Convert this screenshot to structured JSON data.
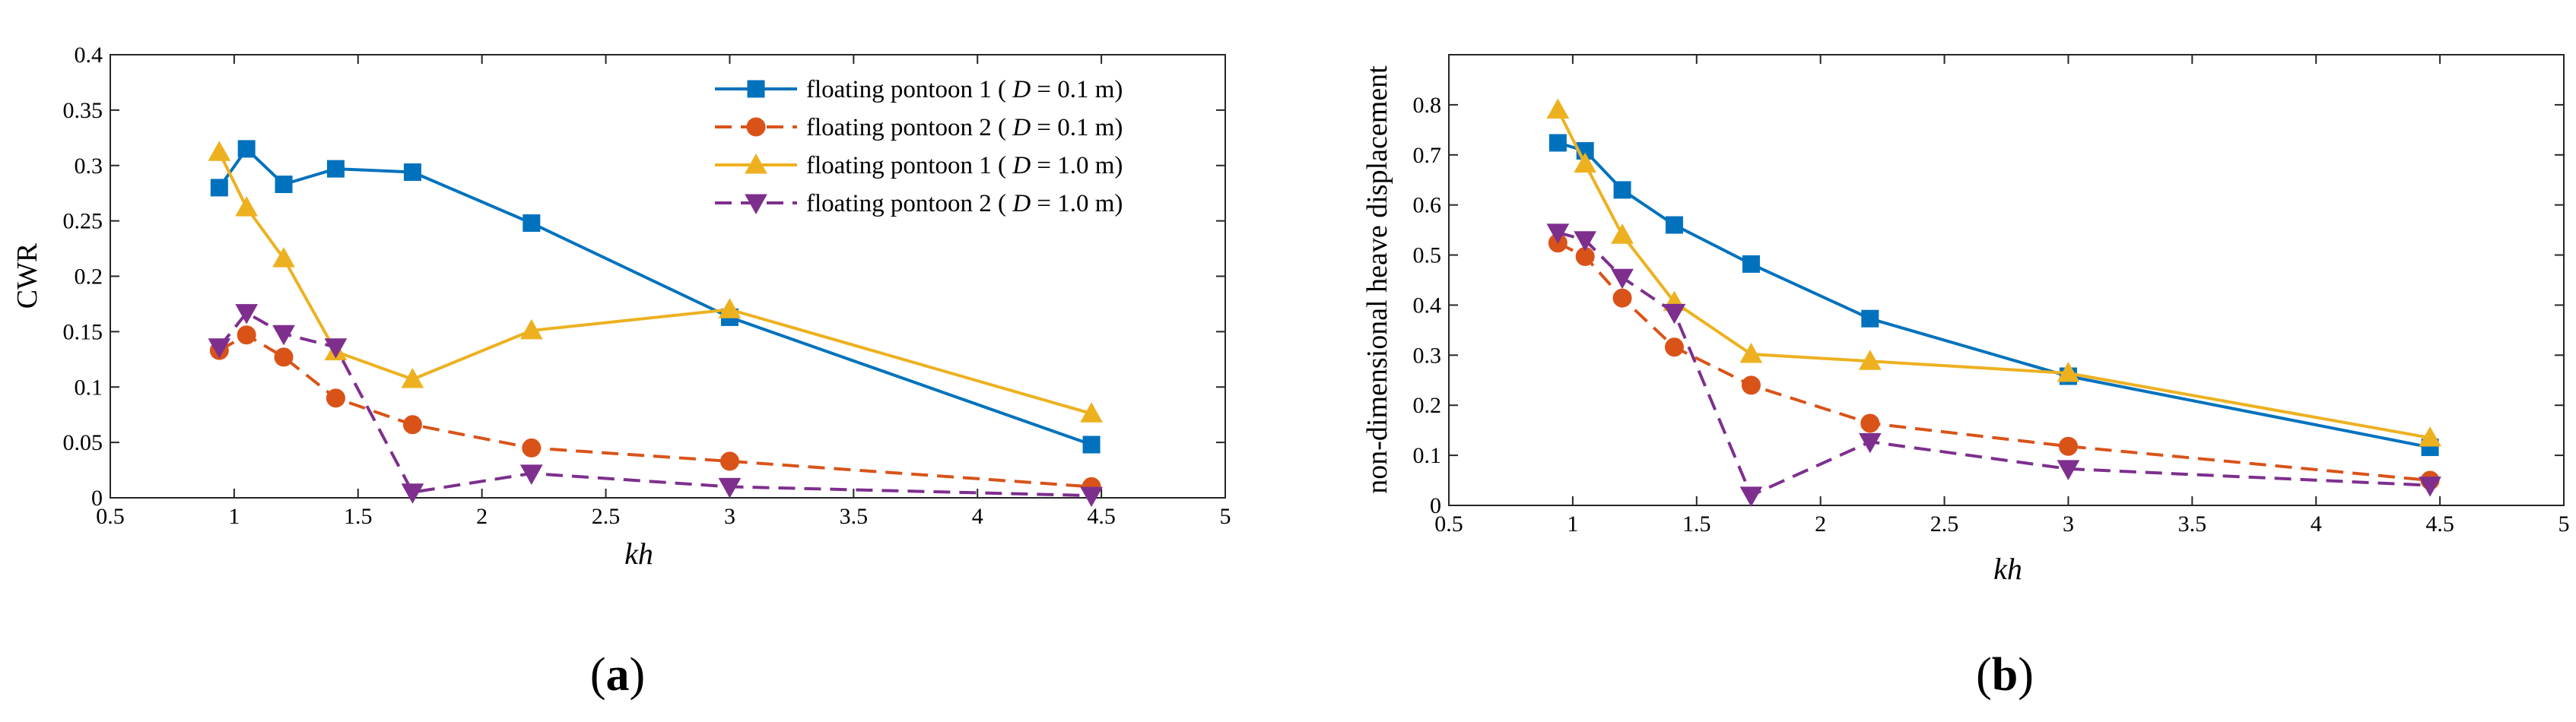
{
  "legend": [
    {
      "pre": "floating pontoon 1 ( ",
      "D": "D",
      "post": " = 0.1 m)"
    },
    {
      "pre": "floating pontoon 2 ( ",
      "D": "D",
      "post": " = 0.1 m)"
    },
    {
      "pre": "floating pontoon 1 ( ",
      "D": "D",
      "post": " = 1.0 m)"
    },
    {
      "pre": "floating pontoon 2 ( ",
      "D": "D",
      "post": " = 1.0 m)"
    }
  ],
  "chart_data": [
    {
      "type": "line",
      "panel_label": "a",
      "xlabel": "kh",
      "ylabel": "CWR",
      "xlim": [
        0.5,
        5
      ],
      "ylim": [
        0,
        0.4
      ],
      "x_ticks": [
        "0.5",
        "1",
        "1.5",
        "2",
        "2.5",
        "3",
        "3.5",
        "4",
        "4.5",
        "5"
      ],
      "y_ticks": [
        "0",
        "0.05",
        "0.1",
        "0.15",
        "0.2",
        "0.25",
        "0.3",
        "0.35",
        "0.4"
      ],
      "grid": false,
      "legend_position": "top-right",
      "series": [
        {
          "name": "floating pontoon 1 ( D = 0.1 m)",
          "color": "#0072BD",
          "dash": "solid",
          "marker": "square",
          "x": [
            0.94,
            1.05,
            1.2,
            1.41,
            1.72,
            2.2,
            3.0,
            4.46
          ],
          "y": [
            0.28,
            0.315,
            0.283,
            0.297,
            0.294,
            0.248,
            0.163,
            0.048
          ]
        },
        {
          "name": "floating pontoon 2 ( D = 0.1 m)",
          "color": "#D95319",
          "dash": "dashed",
          "marker": "circle",
          "x": [
            0.94,
            1.05,
            1.2,
            1.41,
            1.72,
            2.2,
            3.0,
            4.46
          ],
          "y": [
            0.133,
            0.147,
            0.127,
            0.09,
            0.066,
            0.045,
            0.033,
            0.01
          ]
        },
        {
          "name": "floating pontoon 1 ( D = 1.0 m)",
          "color": "#EDB120",
          "dash": "solid",
          "marker": "triangle-up",
          "x": [
            0.94,
            1.05,
            1.2,
            1.41,
            1.72,
            2.2,
            3.0,
            4.46
          ],
          "y": [
            0.312,
            0.262,
            0.216,
            0.132,
            0.107,
            0.151,
            0.17,
            0.076
          ]
        },
        {
          "name": "floating pontoon 2 ( D = 1.0 m)",
          "color": "#7E2F8E",
          "dash": "dashed",
          "marker": "triangle-down",
          "x": [
            0.94,
            1.05,
            1.2,
            1.41,
            1.72,
            2.2,
            3.0,
            4.46
          ],
          "y": [
            0.136,
            0.167,
            0.148,
            0.136,
            0.005,
            0.022,
            0.01,
            0.002
          ]
        }
      ]
    },
    {
      "type": "line",
      "panel_label": "b",
      "xlabel": "kh",
      "ylabel": "non-dimensional heave displacement",
      "xlim": [
        0.5,
        5
      ],
      "ylim": [
        0,
        0.9
      ],
      "x_ticks": [
        "0.5",
        "1",
        "1.5",
        "2",
        "2.5",
        "3",
        "3.5",
        "4",
        "4.5",
        "5"
      ],
      "y_ticks": [
        "0",
        "0.1",
        "0.2",
        "0.3",
        "0.4",
        "0.5",
        "0.6",
        "0.7",
        "0.8"
      ],
      "grid": false,
      "series": [
        {
          "name": "floating pontoon 1 ( D = 0.1 m)",
          "color": "#0072BD",
          "dash": "solid",
          "marker": "square",
          "x": [
            0.94,
            1.05,
            1.2,
            1.41,
            1.72,
            2.2,
            3.0,
            4.46
          ],
          "y": [
            0.724,
            0.708,
            0.63,
            0.56,
            0.482,
            0.373,
            0.258,
            0.116
          ]
        },
        {
          "name": "floating pontoon 2 ( D = 0.1 m)",
          "color": "#D95319",
          "dash": "dashed",
          "marker": "circle",
          "x": [
            0.94,
            1.05,
            1.2,
            1.41,
            1.72,
            2.2,
            3.0,
            4.46
          ],
          "y": [
            0.524,
            0.497,
            0.414,
            0.316,
            0.24,
            0.164,
            0.118,
            0.05
          ]
        },
        {
          "name": "floating pontoon 1 ( D = 1.0 m)",
          "color": "#EDB120",
          "dash": "solid",
          "marker": "triangle-up",
          "x": [
            0.94,
            1.05,
            1.2,
            1.41,
            1.72,
            2.2,
            3.0,
            4.46
          ],
          "y": [
            0.79,
            0.682,
            0.54,
            0.406,
            0.302,
            0.288,
            0.264,
            0.135
          ]
        },
        {
          "name": "floating pontoon 2 ( D = 1.0 m)",
          "color": "#7E2F8E",
          "dash": "dashed",
          "marker": "triangle-down",
          "x": [
            0.94,
            1.05,
            1.2,
            1.41,
            1.72,
            2.2,
            3.0,
            4.46
          ],
          "y": [
            0.545,
            0.53,
            0.455,
            0.385,
            0.02,
            0.127,
            0.073,
            0.04
          ]
        }
      ]
    }
  ]
}
